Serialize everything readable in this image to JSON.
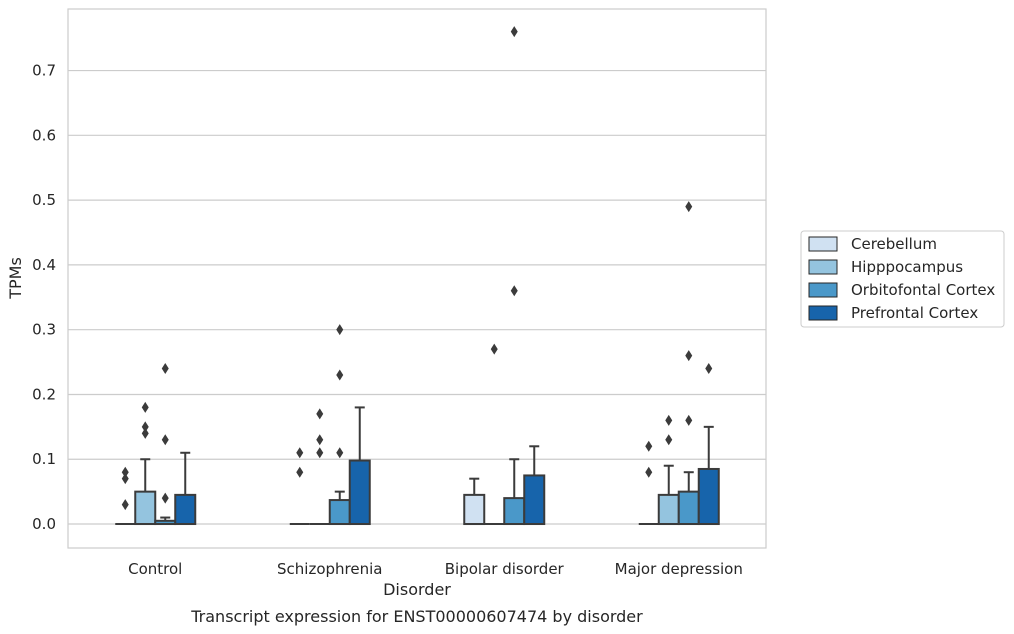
{
  "chart_data": {
    "type": "box",
    "caption": "Transcript expression for ENST00000607474 by disorder",
    "xlabel": "Disorder",
    "ylabel": "TPMs",
    "ylim": [
      -0.037,
      0.795
    ],
    "yticks": [
      0.0,
      0.1,
      0.2,
      0.3,
      0.4,
      0.5,
      0.6,
      0.7
    ],
    "ytick_labels": [
      "0.0",
      "0.1",
      "0.2",
      "0.3",
      "0.4",
      "0.5",
      "0.6",
      "0.7"
    ],
    "grid": "horizontal",
    "legend_position": "right",
    "categories": [
      "Control",
      "Schizophrenia",
      "Bipolar disorder",
      "Major depression"
    ],
    "series": [
      {
        "name": "Cerebellum",
        "color": "#d0e1f2",
        "boxes": [
          {
            "q1": 0,
            "median": 0,
            "q3": 0,
            "whisker_low": 0,
            "whisker_high": 0,
            "outliers": [
              0.08,
              0.07,
              0.03
            ]
          },
          {
            "q1": 0,
            "median": 0,
            "q3": 0,
            "whisker_low": 0,
            "whisker_high": 0,
            "outliers": [
              0.11,
              0.08
            ]
          },
          {
            "q1": 0,
            "median": 0,
            "q3": 0.045,
            "whisker_low": 0,
            "whisker_high": 0.07,
            "outliers": []
          },
          {
            "q1": 0,
            "median": 0,
            "q3": 0,
            "whisker_low": 0,
            "whisker_high": 0,
            "outliers": [
              0.12,
              0.08
            ]
          }
        ]
      },
      {
        "name": "Hipppocampus",
        "color": "#94c4df",
        "boxes": [
          {
            "q1": 0,
            "median": 0,
            "q3": 0.05,
            "whisker_low": 0,
            "whisker_high": 0.1,
            "outliers": [
              0.18,
              0.15,
              0.14
            ]
          },
          {
            "q1": 0,
            "median": 0,
            "q3": 0,
            "whisker_low": 0,
            "whisker_high": 0,
            "outliers": [
              0.17,
              0.13,
              0.11
            ]
          },
          {
            "q1": 0,
            "median": 0,
            "q3": 0,
            "whisker_low": 0,
            "whisker_high": 0,
            "outliers": [
              0.27
            ]
          },
          {
            "q1": 0,
            "median": 0,
            "q3": 0.045,
            "whisker_low": 0,
            "whisker_high": 0.09,
            "outliers": [
              0.16,
              0.13
            ]
          }
        ]
      },
      {
        "name": "Orbitofontal Cortex",
        "color": "#4a98c9",
        "boxes": [
          {
            "q1": 0,
            "median": 0,
            "q3": 0.005,
            "whisker_low": 0,
            "whisker_high": 0.01,
            "outliers": [
              0.24,
              0.13,
              0.04
            ]
          },
          {
            "q1": 0,
            "median": 0,
            "q3": 0.037,
            "whisker_low": 0,
            "whisker_high": 0.05,
            "outliers": [
              0.3,
              0.23,
              0.11
            ]
          },
          {
            "q1": 0,
            "median": 0,
            "q3": 0.04,
            "whisker_low": 0,
            "whisker_high": 0.1,
            "outliers": [
              0.76,
              0.36
            ]
          },
          {
            "q1": 0,
            "median": 0,
            "q3": 0.05,
            "whisker_low": 0,
            "whisker_high": 0.08,
            "outliers": [
              0.49,
              0.26,
              0.16
            ]
          }
        ]
      },
      {
        "name": "Prefrontal Cortex",
        "color": "#1764ab",
        "boxes": [
          {
            "q1": 0,
            "median": 0,
            "q3": 0.045,
            "whisker_low": 0,
            "whisker_high": 0.11,
            "outliers": []
          },
          {
            "q1": 0,
            "median": 0,
            "q3": 0.098,
            "whisker_low": 0,
            "whisker_high": 0.18,
            "outliers": []
          },
          {
            "q1": 0,
            "median": 0,
            "q3": 0.075,
            "whisker_low": 0,
            "whisker_high": 0.12,
            "outliers": []
          },
          {
            "q1": 0,
            "median": 0,
            "q3": 0.085,
            "whisker_low": 0,
            "whisker_high": 0.15,
            "outliers": [
              0.24
            ]
          }
        ]
      }
    ]
  },
  "colors": {
    "line": "#3b3b3b",
    "grid": "#cccccc",
    "frame": "#cccccc"
  }
}
